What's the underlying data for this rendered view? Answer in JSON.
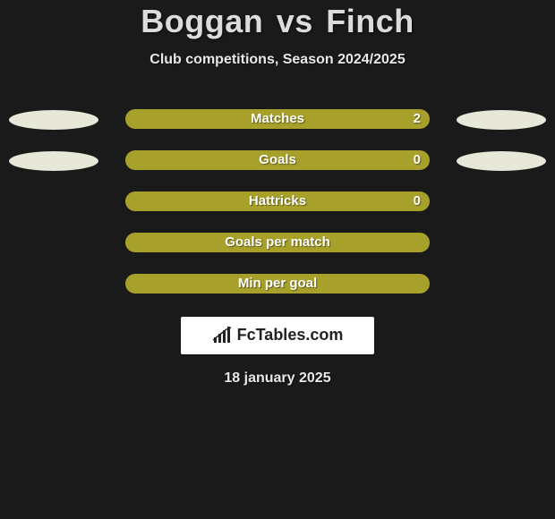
{
  "title": {
    "player1": "Boggan",
    "vs": "vs",
    "player2": "Finch"
  },
  "subtitle": "Club competitions, Season 2024/2025",
  "colors": {
    "background": "#1a1a1a",
    "left": "#e8e8d8",
    "right": "#a7a02b",
    "full_bar": "#a7a02b",
    "text": "#ffffff"
  },
  "ellipses": {
    "row0": {
      "left": "#e8e8d8",
      "right": "#e8e8d8"
    },
    "row1": {
      "left": "#e8e8d8",
      "right": "#e8e8d8"
    }
  },
  "rows": [
    {
      "label": "Matches",
      "left": "",
      "right": "2",
      "left_pct": 0,
      "right_pct": 100,
      "show_values": true,
      "show_ellipses": true
    },
    {
      "label": "Goals",
      "left": "",
      "right": "0",
      "left_pct": 0,
      "right_pct": 100,
      "show_values": true,
      "show_ellipses": true
    },
    {
      "label": "Hattricks",
      "left": "",
      "right": "0",
      "left_pct": 0,
      "right_pct": 100,
      "show_values": true,
      "show_ellipses": false
    },
    {
      "label": "Goals per match",
      "left": "",
      "right": "",
      "left_pct": 0,
      "right_pct": 100,
      "show_values": false,
      "show_ellipses": false
    },
    {
      "label": "Min per goal",
      "left": "",
      "right": "",
      "left_pct": 0,
      "right_pct": 100,
      "show_values": false,
      "show_ellipses": false
    }
  ],
  "badge": {
    "text": "FcTables.com"
  },
  "date": "18 january 2025"
}
